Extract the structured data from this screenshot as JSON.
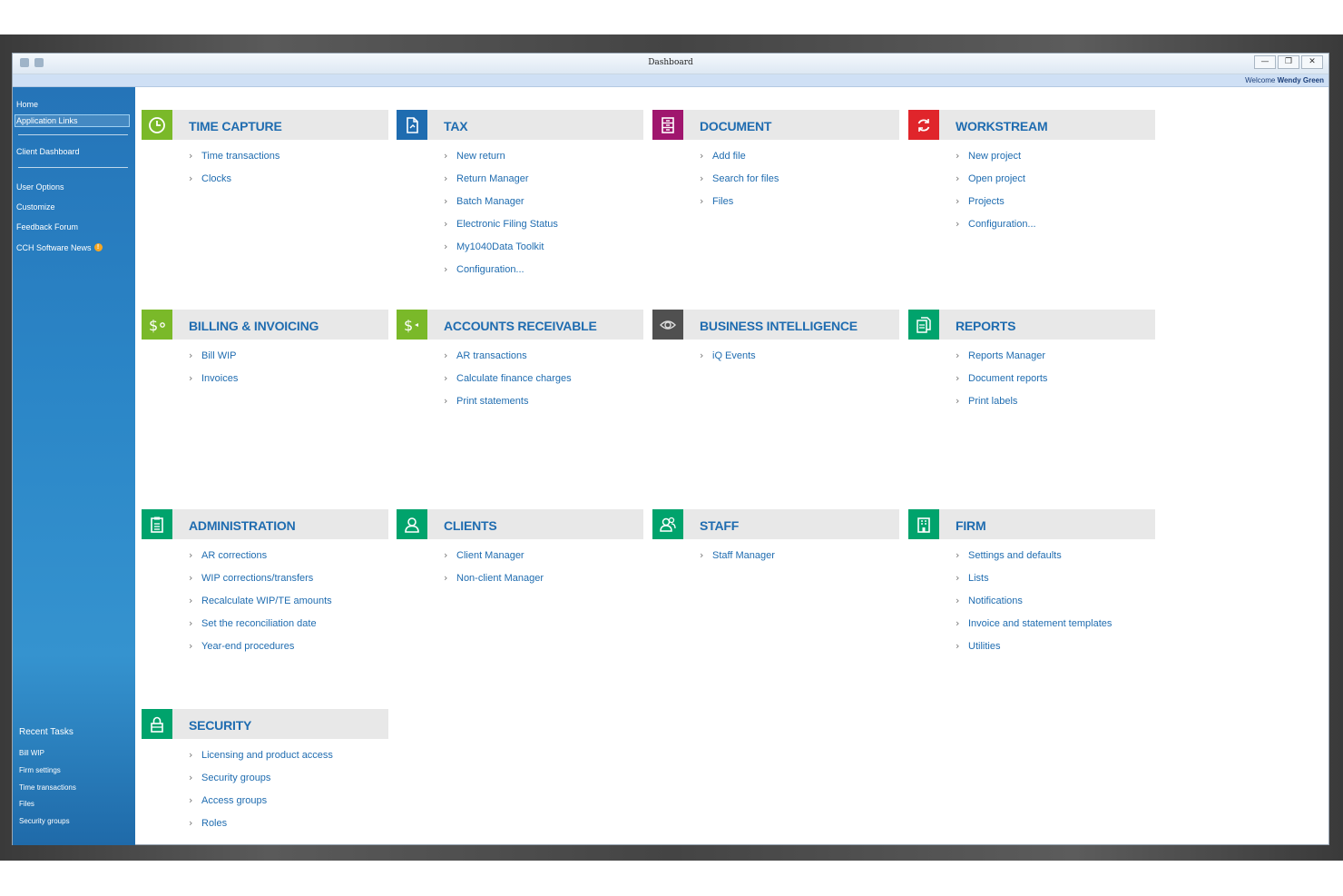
{
  "window": {
    "title": "Dashboard",
    "controls": {
      "minimize": "—",
      "restore": "❐",
      "close": "✕"
    }
  },
  "welcome": {
    "prefix": "Welcome",
    "user": "Wendy Green"
  },
  "sidebar": {
    "items": [
      {
        "label": "Home"
      },
      {
        "label": "Application Links"
      },
      {
        "label": "Client Dashboard"
      },
      {
        "label": "User Options"
      },
      {
        "label": "Customize"
      },
      {
        "label": "Feedback Forum"
      },
      {
        "label": "CCH Software News"
      }
    ],
    "news_badge": "!",
    "recent_tasks_title": "Recent Tasks",
    "recent_tasks": [
      "Bill WIP",
      "Firm settings",
      "Time transactions",
      "Files",
      "Security groups"
    ]
  },
  "tiles": [
    {
      "title": "TIME CAPTURE",
      "icon": "clock-icon",
      "color": "#7ab929",
      "links": [
        "Time transactions",
        "Clocks"
      ]
    },
    {
      "title": "TAX",
      "icon": "tax-document-icon",
      "color": "#1f6cb0",
      "links": [
        "New return",
        "Return Manager",
        "Batch Manager",
        "Electronic Filing Status",
        "My1040Data Toolkit",
        "Configuration..."
      ]
    },
    {
      "title": "DOCUMENT",
      "icon": "document-cabinet-icon",
      "color": "#a0166e",
      "links": [
        "Add file",
        "Search for files",
        "Files"
      ]
    },
    {
      "title": "WORKSTREAM",
      "icon": "workstream-cycle-icon",
      "color": "#e0252b",
      "links": [
        "New project",
        "Open project",
        "Projects",
        "Configuration..."
      ]
    },
    {
      "title": "BILLING & INVOICING",
      "icon": "billing-dollar-icon",
      "color": "#7ab929",
      "links": [
        "Bill WIP",
        "Invoices"
      ]
    },
    {
      "title": "ACCOUNTS RECEIVABLE",
      "icon": "receivable-dollar-icon",
      "color": "#7ab929",
      "links": [
        "AR transactions",
        "Calculate finance charges",
        "Print statements"
      ]
    },
    {
      "title": "BUSINESS INTELLIGENCE",
      "icon": "eye-icon",
      "color": "#505050",
      "links": [
        "iQ Events"
      ]
    },
    {
      "title": "REPORTS",
      "icon": "reports-icon",
      "color": "#00a36c",
      "links": [
        "Reports Manager",
        "Document reports",
        "Print labels"
      ]
    },
    {
      "title": "ADMINISTRATION",
      "icon": "clipboard-icon",
      "color": "#00a36c",
      "links": [
        "AR corrections",
        "WIP corrections/transfers",
        "Recalculate WIP/TE amounts",
        "Set the reconciliation date",
        "Year-end procedures"
      ]
    },
    {
      "title": "CLIENTS",
      "icon": "client-person-icon",
      "color": "#00a36c",
      "links": [
        "Client Manager",
        "Non-client Manager"
      ]
    },
    {
      "title": "STAFF",
      "icon": "staff-people-icon",
      "color": "#00a36c",
      "links": [
        "Staff Manager"
      ]
    },
    {
      "title": "FIRM",
      "icon": "firm-building-icon",
      "color": "#00a36c",
      "links": [
        "Settings and defaults",
        "Lists",
        "Notifications",
        "Invoice and statement templates",
        "Utilities"
      ]
    },
    {
      "title": "SECURITY",
      "icon": "lock-icon",
      "color": "#00a36c",
      "links": [
        "Licensing and product access",
        "Security groups",
        "Access groups",
        "Roles"
      ]
    }
  ]
}
